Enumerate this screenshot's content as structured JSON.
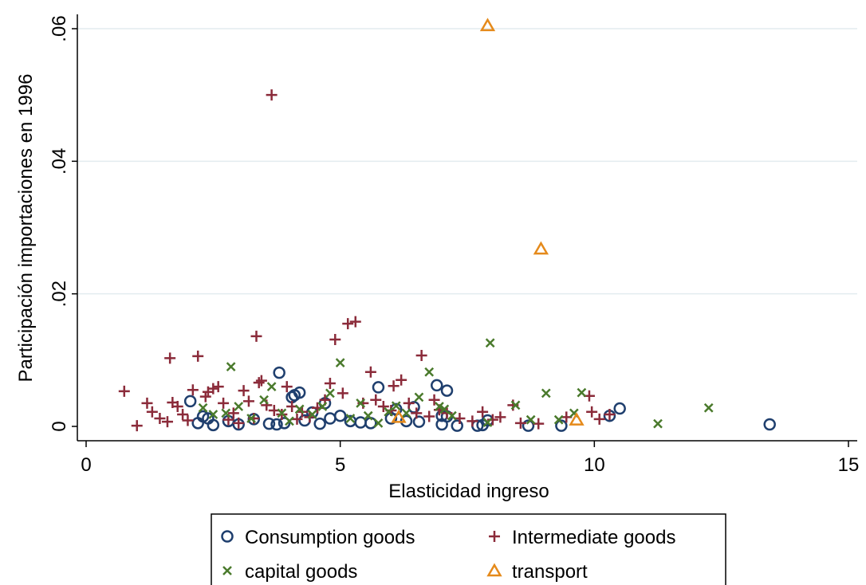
{
  "chart_data": {
    "type": "scatter",
    "xlabel": "Elasticidad ingreso",
    "ylabel": "Participación importaciones en 1996",
    "xlim": [
      0,
      15
    ],
    "ylim": [
      0,
      0.06
    ],
    "xticks": [
      {
        "value": 0,
        "label": "0"
      },
      {
        "value": 5,
        "label": "5"
      },
      {
        "value": 10,
        "label": "10"
      },
      {
        "value": 15,
        "label": "15"
      }
    ],
    "yticks": [
      {
        "value": 0,
        "label": "0"
      },
      {
        "value": 0.02,
        "label": ".02"
      },
      {
        "value": 0.04,
        "label": ".04"
      },
      {
        "value": 0.06,
        "label": ".06"
      }
    ],
    "grid": "horizontal",
    "legend_position": "bottom",
    "series": [
      {
        "name": "Consumption goods",
        "marker": "circle",
        "color": "#1f3f6e",
        "points": [
          [
            2.05,
            0.0038
          ],
          [
            2.3,
            0.0015
          ],
          [
            2.4,
            0.0012
          ],
          [
            2.5,
            0.0002
          ],
          [
            2.2,
            0.0005
          ],
          [
            2.8,
            0.0008
          ],
          [
            3.0,
            0.0003
          ],
          [
            3.3,
            0.0011
          ],
          [
            3.6,
            0.0004
          ],
          [
            3.75,
            0.0003
          ],
          [
            3.8,
            0.0081
          ],
          [
            3.9,
            0.0005
          ],
          [
            4.05,
            0.0044
          ],
          [
            4.1,
            0.0047
          ],
          [
            4.2,
            0.0051
          ],
          [
            4.3,
            0.0009
          ],
          [
            4.45,
            0.0021
          ],
          [
            4.6,
            0.0004
          ],
          [
            4.7,
            0.0035
          ],
          [
            4.8,
            0.0012
          ],
          [
            5.0,
            0.0016
          ],
          [
            5.2,
            0.0008
          ],
          [
            5.4,
            0.0006
          ],
          [
            5.6,
            0.0005
          ],
          [
            5.75,
            0.0059
          ],
          [
            6.0,
            0.0012
          ],
          [
            6.1,
            0.0026
          ],
          [
            6.3,
            0.0008
          ],
          [
            6.45,
            0.0029
          ],
          [
            6.55,
            0.0007
          ],
          [
            6.9,
            0.0062
          ],
          [
            7.1,
            0.0054
          ],
          [
            7.0,
            0.0016
          ],
          [
            7.1,
            0.0015
          ],
          [
            7.0,
            0.0003
          ],
          [
            7.3,
            0.0001
          ],
          [
            7.7,
            0.0001
          ],
          [
            7.8,
            0.0002
          ],
          [
            7.9,
            0.0009
          ],
          [
            8.7,
            0.0001
          ],
          [
            9.35,
            0.0001
          ],
          [
            10.3,
            0.0016
          ],
          [
            10.5,
            0.0027
          ],
          [
            13.45,
            0.0003
          ]
        ]
      },
      {
        "name": "Intermediate goods",
        "marker": "plus",
        "color": "#8b2b3a",
        "points": [
          [
            0.75,
            0.0053
          ],
          [
            1.0,
            0.0001
          ],
          [
            1.2,
            0.0035
          ],
          [
            1.3,
            0.0022
          ],
          [
            1.45,
            0.0012
          ],
          [
            1.6,
            0.0007
          ],
          [
            1.65,
            0.0103
          ],
          [
            1.7,
            0.0036
          ],
          [
            1.8,
            0.003
          ],
          [
            1.9,
            0.0018
          ],
          [
            2.0,
            0.0009
          ],
          [
            2.1,
            0.0055
          ],
          [
            2.2,
            0.0106
          ],
          [
            2.35,
            0.0045
          ],
          [
            2.4,
            0.0052
          ],
          [
            2.5,
            0.0057
          ],
          [
            2.6,
            0.006
          ],
          [
            2.7,
            0.0035
          ],
          [
            2.8,
            0.001
          ],
          [
            2.9,
            0.002
          ],
          [
            3.0,
            0.0005
          ],
          [
            3.1,
            0.0054
          ],
          [
            3.2,
            0.0038
          ],
          [
            3.3,
            0.0012
          ],
          [
            3.35,
            0.0136
          ],
          [
            3.4,
            0.0066
          ],
          [
            3.45,
            0.0069
          ],
          [
            3.55,
            0.0032
          ],
          [
            3.65,
            0.05
          ],
          [
            3.7,
            0.0024
          ],
          [
            3.85,
            0.0018
          ],
          [
            3.95,
            0.006
          ],
          [
            4.05,
            0.003
          ],
          [
            4.15,
            0.0011
          ],
          [
            4.25,
            0.0022
          ],
          [
            4.4,
            0.0014
          ],
          [
            4.55,
            0.0028
          ],
          [
            4.7,
            0.004
          ],
          [
            4.8,
            0.0065
          ],
          [
            4.9,
            0.0131
          ],
          [
            5.05,
            0.005
          ],
          [
            5.15,
            0.0155
          ],
          [
            5.3,
            0.0158
          ],
          [
            5.45,
            0.0035
          ],
          [
            5.6,
            0.0082
          ],
          [
            5.7,
            0.004
          ],
          [
            5.85,
            0.003
          ],
          [
            6.0,
            0.0024
          ],
          [
            6.05,
            0.0061
          ],
          [
            6.2,
            0.007
          ],
          [
            6.35,
            0.0035
          ],
          [
            6.5,
            0.002
          ],
          [
            6.6,
            0.0107
          ],
          [
            6.75,
            0.0015
          ],
          [
            6.85,
            0.004
          ],
          [
            6.95,
            0.0025
          ],
          [
            7.1,
            0.002
          ],
          [
            7.35,
            0.0012
          ],
          [
            7.6,
            0.0008
          ],
          [
            7.8,
            0.0022
          ],
          [
            8.0,
            0.001
          ],
          [
            8.15,
            0.0014
          ],
          [
            8.4,
            0.0032
          ],
          [
            8.55,
            0.0005
          ],
          [
            8.9,
            0.0004
          ],
          [
            9.45,
            0.0014
          ],
          [
            9.9,
            0.0046
          ],
          [
            9.95,
            0.0022
          ],
          [
            10.1,
            0.0011
          ],
          [
            10.3,
            0.0018
          ]
        ]
      },
      {
        "name": "capital goods",
        "marker": "x",
        "color": "#4a7a2c",
        "points": [
          [
            2.3,
            0.0028
          ],
          [
            2.5,
            0.0018
          ],
          [
            2.75,
            0.002
          ],
          [
            2.85,
            0.009
          ],
          [
            3.0,
            0.003
          ],
          [
            3.25,
            0.0012
          ],
          [
            3.5,
            0.004
          ],
          [
            3.65,
            0.006
          ],
          [
            3.85,
            0.002
          ],
          [
            4.0,
            0.0008
          ],
          [
            4.2,
            0.0026
          ],
          [
            4.45,
            0.0018
          ],
          [
            4.65,
            0.003
          ],
          [
            4.8,
            0.005
          ],
          [
            5.0,
            0.0096
          ],
          [
            5.2,
            0.0012
          ],
          [
            5.4,
            0.0035
          ],
          [
            5.55,
            0.0016
          ],
          [
            5.75,
            0.0005
          ],
          [
            5.95,
            0.0022
          ],
          [
            6.1,
            0.0031
          ],
          [
            6.3,
            0.002
          ],
          [
            6.55,
            0.0044
          ],
          [
            6.75,
            0.0082
          ],
          [
            6.95,
            0.003
          ],
          [
            7.05,
            0.0026
          ],
          [
            7.2,
            0.0016
          ],
          [
            7.9,
            0.0006
          ],
          [
            7.95,
            0.0126
          ],
          [
            8.45,
            0.0032
          ],
          [
            8.75,
            0.001
          ],
          [
            9.05,
            0.005
          ],
          [
            9.3,
            0.001
          ],
          [
            9.6,
            0.002
          ],
          [
            9.75,
            0.0051
          ],
          [
            11.25,
            0.0004
          ],
          [
            12.25,
            0.0028
          ]
        ]
      },
      {
        "name": "transport",
        "marker": "triangle",
        "color": "#e58a1b",
        "points": [
          [
            7.9,
            0.0605
          ],
          [
            8.95,
            0.0268
          ],
          [
            6.15,
            0.0014
          ],
          [
            9.65,
            0.001
          ]
        ]
      }
    ]
  }
}
